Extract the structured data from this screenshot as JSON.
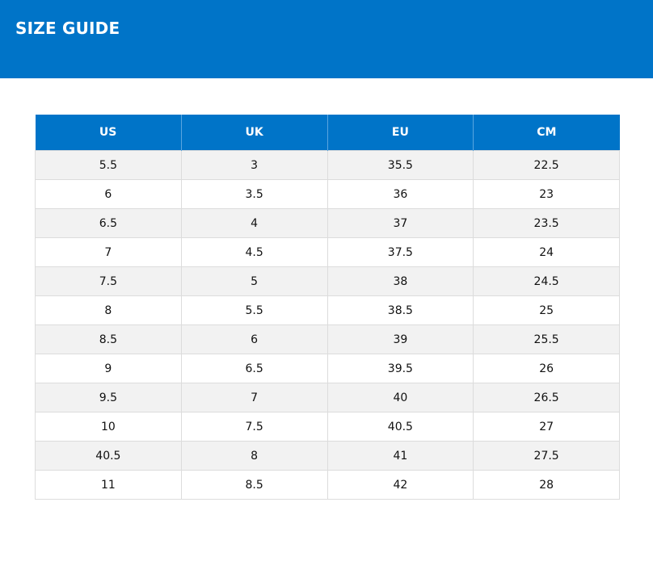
{
  "header": {
    "title": "SIZE GUIDE",
    "background_color": "#0074c8"
  },
  "table": {
    "columns": [
      "US",
      "UK",
      "EU",
      "CM"
    ],
    "rows": [
      [
        "5.5",
        "3",
        "35.5",
        "22.5"
      ],
      [
        "6",
        "3.5",
        "36",
        "23"
      ],
      [
        "6.5",
        "4",
        "37",
        "23.5"
      ],
      [
        "7",
        "4.5",
        "37.5",
        "24"
      ],
      [
        "7.5",
        "5",
        "38",
        "24.5"
      ],
      [
        "8",
        "5.5",
        "38.5",
        "25"
      ],
      [
        "8.5",
        "6",
        "39",
        "25.5"
      ],
      [
        "9",
        "6.5",
        "39.5",
        "26"
      ],
      [
        "9.5",
        "7",
        "40",
        "26.5"
      ],
      [
        "10",
        "7.5",
        "40.5",
        "27"
      ],
      [
        "40.5",
        "8",
        "41",
        "27.5"
      ],
      [
        "11",
        "8.5",
        "42",
        "28"
      ]
    ],
    "header_color": "#0074c8",
    "stripe_color": "#f2f2f2"
  }
}
